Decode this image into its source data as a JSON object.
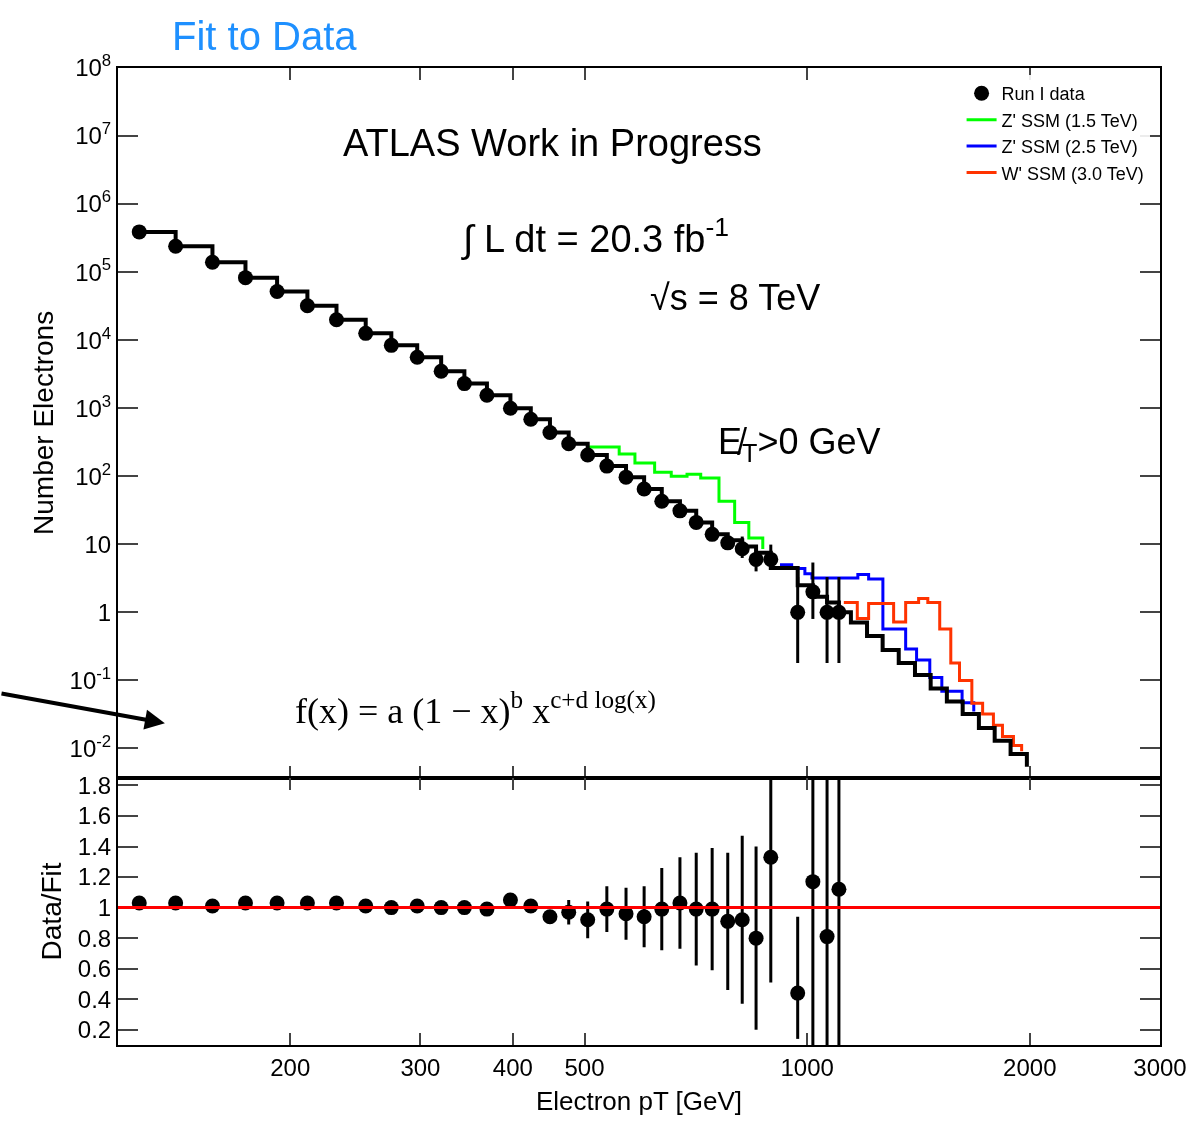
{
  "chart_data": [
    {
      "type": "scatter",
      "title": "Fit to Data",
      "ylabel": "Number Electrons",
      "log": "xy",
      "xlim": [
        117,
        3000
      ],
      "ylim": [
        0.0037,
        100000000
      ],
      "xticks": [
        200,
        300,
        400,
        500,
        1000,
        2000,
        3000
      ],
      "yticks": [
        {
          "value": 0.01,
          "label": "10$^{-2}$"
        },
        {
          "value": 0.1,
          "label": "10$^{-1}$"
        },
        {
          "value": 1,
          "label": "1"
        },
        {
          "value": 10,
          "label": "10"
        },
        {
          "value": 100,
          "label": "10$^{2}$"
        },
        {
          "value": 1000,
          "label": "10$^{3}$"
        },
        {
          "value": 10000,
          "label": "10$^{4}$"
        },
        {
          "value": 100000,
          "label": "10$^{5}$"
        },
        {
          "value": 1000000,
          "label": "10$^{6}$"
        },
        {
          "value": 10000000,
          "label": "10$^{7}$"
        },
        {
          "value": 100000000,
          "label": "10$^{8}$"
        }
      ],
      "tick_labels": "y",
      "legend": "top right",
      "grid": false,
      "annotations": [
        "ATLAS Work in Progress",
        "∫ L dt = 20.3 fb$^{-1}$",
        "√s = 8 TeV",
        "E̸$_{T}$>0 GeV",
        "f(x) = a (1 − x)$^{b}$ x$^{c+d log(x)}$"
      ],
      "series": [
        {
          "type": "step",
          "color": "#00ff00",
          "name": "Z' SSM (1.5 TeV)",
          "x": [
            505,
            557,
            585,
            622,
            655,
            688,
            718,
            760,
            798,
            834,
            871
          ],
          "values": [
            270,
            212,
            156,
            115,
            100,
            107,
            94,
            43,
            21,
            12.4,
            8.5
          ]
        },
        {
          "type": "step",
          "color": "#0000ff",
          "name": "Z' SSM (2.5 TeV)",
          "x": [
            919,
            953,
            993,
            1015,
            1171,
            1211,
            1266,
            1359,
            1406,
            1465,
            1521,
            1620,
            1680
          ],
          "values": [
            5.0,
            4.4,
            3.7,
            3.2,
            3.6,
            3.1,
            0.57,
            0.29,
            0.2,
            0.11,
            0.069,
            0.047,
            0.035
          ]
        },
        {
          "type": "step",
          "color": "#ff3300",
          "name": "W' SSM (3.0 TeV)",
          "x": [
            1121,
            1169,
            1211,
            1309,
            1359,
            1415,
            1456,
            1511,
            1564,
            1607,
            1670,
            1727,
            1786,
            1837,
            1901,
            1950
          ],
          "values": [
            1.4,
            0.81,
            1.35,
            0.72,
            1.4,
            1.6,
            1.4,
            0.57,
            0.18,
            0.1,
            0.046,
            0.032,
            0.022,
            0.015,
            0.011,
            0.0091
          ]
        },
        {
          "type": "step",
          "color": "#000000",
          "x": [
            125,
            140,
            157,
            174,
            192,
            211,
            231,
            253,
            274,
            297,
            320,
            344,
            369,
            397,
            423,
            449,
            476,
            505,
            536,
            569,
            602,
            636,
            673,
            708,
            744,
            781,
            817,
            853,
            893,
            971,
            1018,
            1064,
            1104,
            1146,
            1205,
            1265,
            1330,
            1399,
            1469,
            1545,
            1623,
            1707,
            1793,
            1884,
            1982
          ],
          "values": [
            390000,
            240000,
            140000,
            83000,
            52000,
            32000,
            20000,
            12600,
            8400,
            5600,
            3500,
            2300,
            1550,
            1000,
            690,
            440,
            300,
            205,
            141,
            97,
            65,
            43,
            31,
            21,
            14,
            11.5,
            9.3,
            7.5,
            4.5,
            2.5,
            1.7,
            1.4,
            1.0,
            0.71,
            0.45,
            0.28,
            0.18,
            0.12,
            0.076,
            0.049,
            0.032,
            0.02,
            0.013,
            0.0083,
            0.0054
          ]
        },
        {
          "type": "scatter",
          "marker": "circle",
          "color": "#000000",
          "name": "Run I data",
          "x": [
            125,
            140,
            157,
            174,
            192,
            211,
            231,
            253,
            274,
            297,
            320,
            344,
            369,
            397,
            423,
            449,
            476,
            505,
            536,
            569,
            602,
            636,
            673,
            708,
            744,
            781,
            817,
            853,
            893,
            971,
            1018,
            1064,
            1104
          ],
          "values": [
            390000,
            240000,
            140000,
            83000,
            52000,
            32000,
            20000,
            12600,
            8400,
            5600,
            3500,
            2300,
            1550,
            1000,
            690,
            440,
            300,
            205,
            141,
            97,
            65,
            43,
            31,
            21,
            14,
            10.5,
            8.6,
            6,
            6,
            1,
            2,
            1,
            1
          ],
          "errors": [
            null,
            null,
            null,
            null,
            null,
            null,
            null,
            null,
            null,
            null,
            null,
            null,
            null,
            null,
            null,
            null,
            null,
            null,
            null,
            null,
            null,
            null,
            null,
            null,
            null,
            null,
            [
              6.3,
              13
            ],
            [
              4,
              8.3
            ],
            [
              4.7,
              9.9
            ],
            [
              0.18,
              3.3
            ],
            [
              0.8,
              5.4
            ],
            [
              0.18,
              3.3
            ],
            [
              0.18,
              3.3
            ]
          ]
        }
      ]
    },
    {
      "type": "scatter",
      "xlabel": "Electron pT [GeV]",
      "ylabel": "Data/Fit",
      "log": "x",
      "xlim": [
        117,
        3000
      ],
      "ylim": [
        0.1,
        1.85
      ],
      "xticks": [
        200,
        300,
        400,
        500,
        1000,
        2000,
        3000
      ],
      "yticks": [
        0.2,
        0.4,
        0.6,
        0.8,
        1,
        1.2,
        1.4,
        1.6,
        1.8
      ],
      "grid": false,
      "marker": "circle",
      "ref_lines": [
        {
          "axis": "y",
          "value": 1,
          "color": "#ff0000"
        }
      ],
      "series": [
        {
          "color": "#000000",
          "x": [
            125,
            140,
            157,
            174,
            192,
            211,
            231,
            253,
            274,
            297,
            320,
            344,
            369,
            397,
            423,
            449,
            476,
            505,
            536,
            569,
            602,
            636,
            673,
            708,
            744,
            781,
            817,
            853,
            893,
            971,
            1018,
            1064,
            1104
          ],
          "values": [
            1.03,
            1.03,
            1.01,
            1.03,
            1.03,
            1.03,
            1.03,
            1.01,
            1.0,
            1.01,
            1.0,
            1.0,
            0.99,
            1.05,
            1.01,
            0.94,
            0.97,
            0.92,
            0.99,
            0.96,
            0.94,
            0.99,
            1.03,
            0.99,
            0.99,
            0.91,
            0.92,
            0.8,
            1.33,
            0.44,
            1.17,
            0.81,
            1.12
          ],
          "errors": [
            null,
            null,
            null,
            null,
            null,
            null,
            null,
            null,
            null,
            null,
            null,
            null,
            null,
            null,
            null,
            null,
            0.08,
            0.12,
            0.15,
            0.17,
            0.2,
            0.27,
            0.3,
            0.37,
            0.4,
            0.45,
            0.55,
            0.6,
            [
              0.51,
              1.85
            ],
            [
              0.14,
              0.94
            ],
            [
              0.1,
              1.85
            ],
            [
              0.1,
              1.85
            ],
            [
              0.1,
              1.85
            ]
          ]
        }
      ]
    }
  ]
}
